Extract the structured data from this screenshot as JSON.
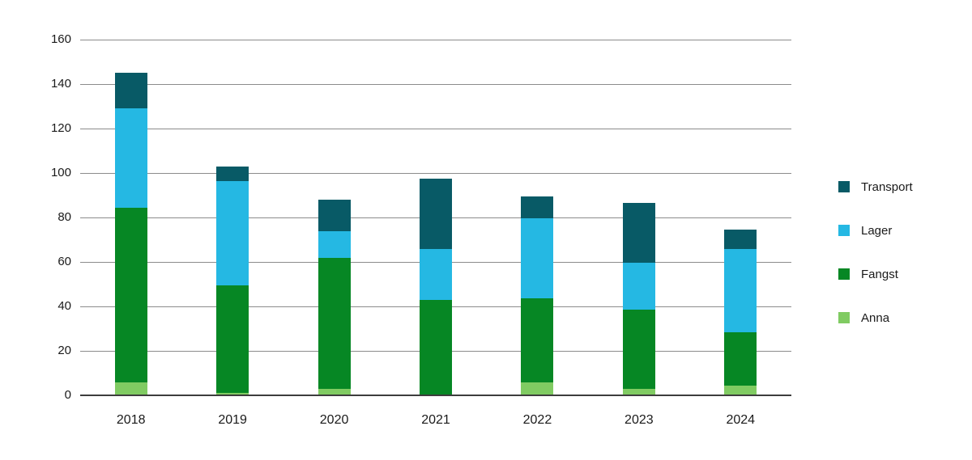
{
  "chart_data": {
    "type": "bar",
    "variant": "stacked-vertical",
    "title": "",
    "xlabel": "",
    "ylabel": "",
    "categories": [
      "2018",
      "2019",
      "2020",
      "2021",
      "2022",
      "2023",
      "2024"
    ],
    "series": [
      {
        "name": "Anna",
        "color": "#80cb62",
        "values": [
          6,
          1,
          3,
          0,
          6,
          3,
          4.5
        ]
      },
      {
        "name": "Fangst",
        "color": "#068724",
        "values": [
          78.5,
          48.5,
          59,
          43,
          37.5,
          35.5,
          24
        ]
      },
      {
        "name": "Lager",
        "color": "#25b8e3",
        "values": [
          44.5,
          47,
          12,
          23,
          36,
          21,
          37.5
        ]
      },
      {
        "name": "Transport",
        "color": "#085a66",
        "values": [
          16,
          6.5,
          14,
          31.5,
          10,
          27,
          8.5
        ]
      }
    ],
    "stack_order_note": "series listed bottom-to-top",
    "totals": [
      145,
      103,
      88,
      97.5,
      89.5,
      86.5,
      74.5
    ],
    "ylim": [
      0,
      160
    ],
    "yticks": [
      0,
      20,
      40,
      60,
      80,
      100,
      120,
      140,
      160
    ],
    "grid": "horizontal",
    "legend_position": "right",
    "legend": [
      {
        "label": "Transport",
        "color": "#085a66"
      },
      {
        "label": "Lager",
        "color": "#25b8e3"
      },
      {
        "label": "Fangst",
        "color": "#068724"
      },
      {
        "label": "Anna",
        "color": "#80cb62"
      }
    ],
    "axis_colors": {
      "gridline": "#8c8c8c",
      "baseline": "#3d3d3d",
      "tick_text": "#1a1a1a"
    }
  }
}
